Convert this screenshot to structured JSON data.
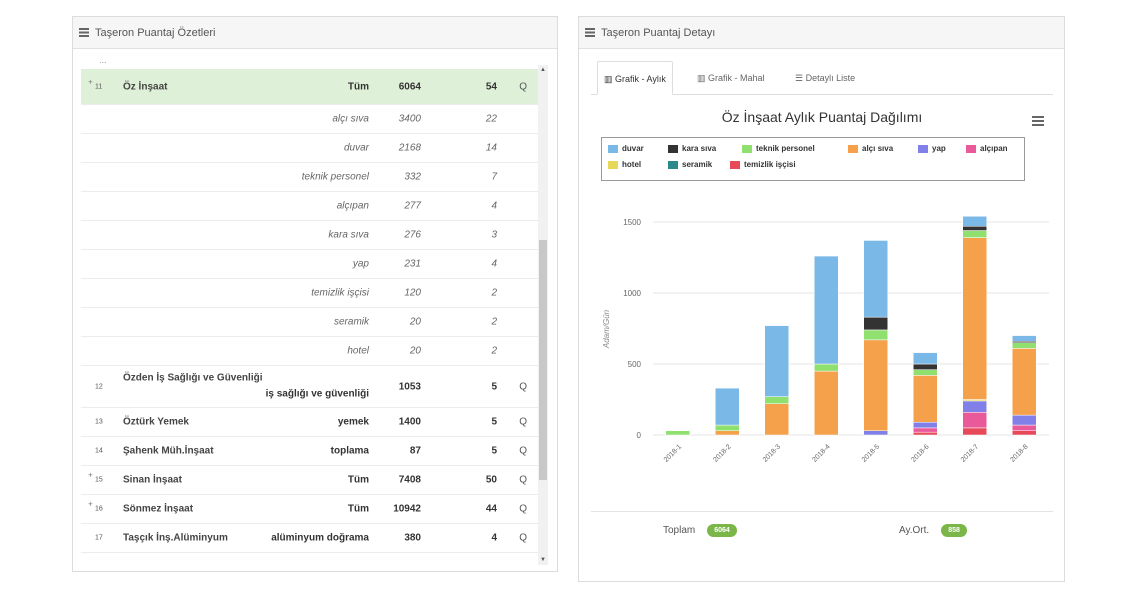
{
  "left_panel": {
    "title": "Taşeron Puantaj Özetleri",
    "dots": "...",
    "rows": [
      {
        "id": "11",
        "expand": "+",
        "name": "Öz İnşaat",
        "type": "Tüm",
        "val": "6064",
        "cnt": "54",
        "hl": true
      },
      {
        "type": "alçı sıva",
        "val": "3400",
        "cnt": "22"
      },
      {
        "type": "duvar",
        "val": "2168",
        "cnt": "14"
      },
      {
        "type": "teknik personel",
        "val": "332",
        "cnt": "7"
      },
      {
        "type": "alçıpan",
        "val": "277",
        "cnt": "4"
      },
      {
        "type": "kara sıva",
        "val": "276",
        "cnt": "3"
      },
      {
        "type": "yap",
        "val": "231",
        "cnt": "4"
      },
      {
        "type": "temizlik işçisi",
        "val": "120",
        "cnt": "2"
      },
      {
        "type": "seramik",
        "val": "20",
        "cnt": "2"
      },
      {
        "type": "hotel",
        "val": "20",
        "cnt": "2"
      },
      {
        "id": "12",
        "name": "Özden İş Sağlığı ve Güvenliği",
        "type": "iş sağlığı ve güvenliği",
        "val": "1053",
        "cnt": "5",
        "tall": true
      },
      {
        "id": "13",
        "name": "Öztürk Yemek",
        "type": "yemek",
        "val": "1400",
        "cnt": "5"
      },
      {
        "id": "14",
        "name": "Şahenk Müh.İnşaat",
        "type": "toplama",
        "val": "87",
        "cnt": "5"
      },
      {
        "id": "15",
        "expand": "+",
        "name": "Sinan İnşaat",
        "type": "Tüm",
        "val": "7408",
        "cnt": "50"
      },
      {
        "id": "16",
        "expand": "+",
        "name": "Sönmez İnşaat",
        "type": "Tüm",
        "val": "10942",
        "cnt": "44"
      },
      {
        "id": "17",
        "name": "Taşçık İnş.Alüminyum",
        "type": "alüminyum doğrama",
        "val": "380",
        "cnt": "4"
      }
    ],
    "action_icon": "search-icon",
    "scroll_up": "▲",
    "scroll_down": "▼"
  },
  "right_panel": {
    "title": "Taşeron Puantaj Detayı",
    "tabs": [
      {
        "label": "Grafik - Aylık",
        "icon": "bar-chart-icon",
        "active": true
      },
      {
        "label": "Grafik - Mahal",
        "icon": "bar-chart-icon",
        "active": false
      },
      {
        "label": "Detaylı Liste",
        "icon": "list-icon",
        "active": false
      }
    ],
    "footer": {
      "total_label": "Toplam",
      "total_value": "6064",
      "avg_label": "Ay.Ort.",
      "avg_value": "858"
    }
  },
  "chart_data": {
    "type": "bar",
    "stacked": true,
    "title": "Öz İnşaat Aylık Puantaj Dağılımı",
    "ylabel": "Adam/Gün",
    "ylim": [
      0,
      1500
    ],
    "yticks": [
      "0",
      "500",
      "1000",
      "1500"
    ],
    "categories": [
      "2018-1",
      "2018-2",
      "2018-3",
      "2018-4",
      "2018-5",
      "2018-6",
      "2018-7",
      "2018-8"
    ],
    "legend_position": "top",
    "grid": true,
    "series": [
      {
        "name": "temizlik işçisi",
        "color": "#e8495a",
        "values": [
          0,
          0,
          0,
          0,
          0,
          20,
          50,
          30
        ]
      },
      {
        "name": "alçıpan",
        "color": "#e85a9a",
        "values": [
          0,
          0,
          0,
          0,
          0,
          30,
          110,
          40
        ]
      },
      {
        "name": "yap",
        "color": "#8080e8",
        "values": [
          0,
          0,
          0,
          0,
          30,
          40,
          80,
          70
        ]
      },
      {
        "name": "seramik",
        "color": "#2a8a8a",
        "values": [
          0,
          0,
          0,
          0,
          0,
          0,
          0,
          0
        ]
      },
      {
        "name": "hotel",
        "color": "#e8d85a",
        "values": [
          0,
          0,
          0,
          0,
          0,
          0,
          10,
          0
        ]
      },
      {
        "name": "alçı sıva",
        "color": "#f5a04a",
        "values": [
          0,
          30,
          220,
          450,
          640,
          330,
          1140,
          470
        ]
      },
      {
        "name": "teknik personel",
        "color": "#90e070",
        "values": [
          30,
          40,
          50,
          50,
          70,
          40,
          50,
          40
        ]
      },
      {
        "name": "kara sıva",
        "color": "#333333",
        "values": [
          0,
          0,
          0,
          0,
          90,
          40,
          30,
          10
        ]
      },
      {
        "name": "duvar",
        "color": "#7ab8e8",
        "values": [
          0,
          260,
          500,
          760,
          540,
          80,
          70,
          40
        ]
      }
    ]
  }
}
